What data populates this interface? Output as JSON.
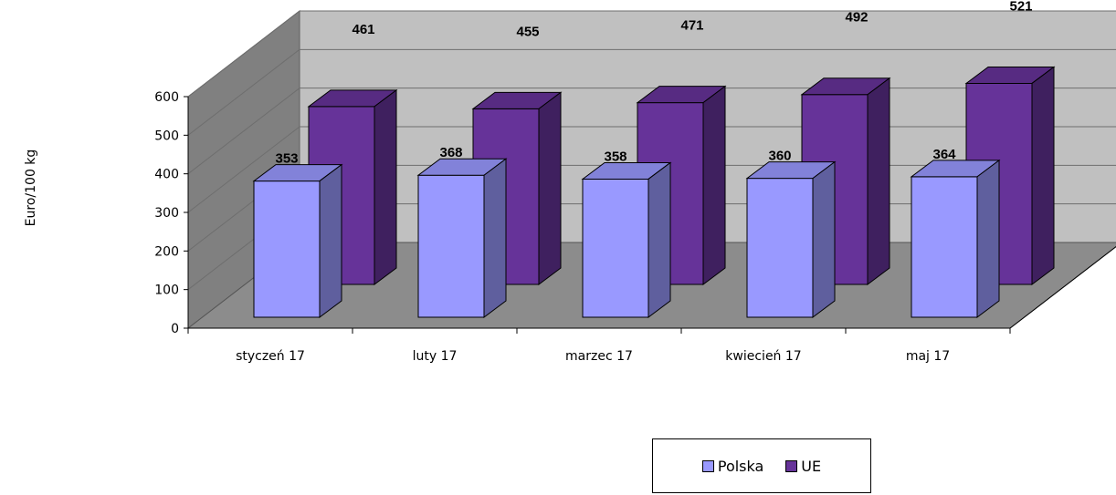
{
  "chart_data": {
    "type": "bar",
    "title": "",
    "xlabel": "",
    "ylabel": "Euro/100 kg",
    "ylim": [
      0,
      600
    ],
    "yticks": [
      "0",
      "100",
      "200",
      "300",
      "400",
      "500",
      "600"
    ],
    "categories": [
      "styczeń 17",
      "luty 17",
      "marzec 17",
      "kwiecień 17",
      "maj 17"
    ],
    "series": [
      {
        "name": "Polska",
        "values": [
          353,
          368,
          358,
          360,
          364
        ],
        "color": "#9999FF"
      },
      {
        "name": "UE",
        "values": [
          461,
          455,
          471,
          492,
          521
        ],
        "color": "#663399"
      }
    ],
    "grid": true,
    "legend_position": "bottom"
  }
}
